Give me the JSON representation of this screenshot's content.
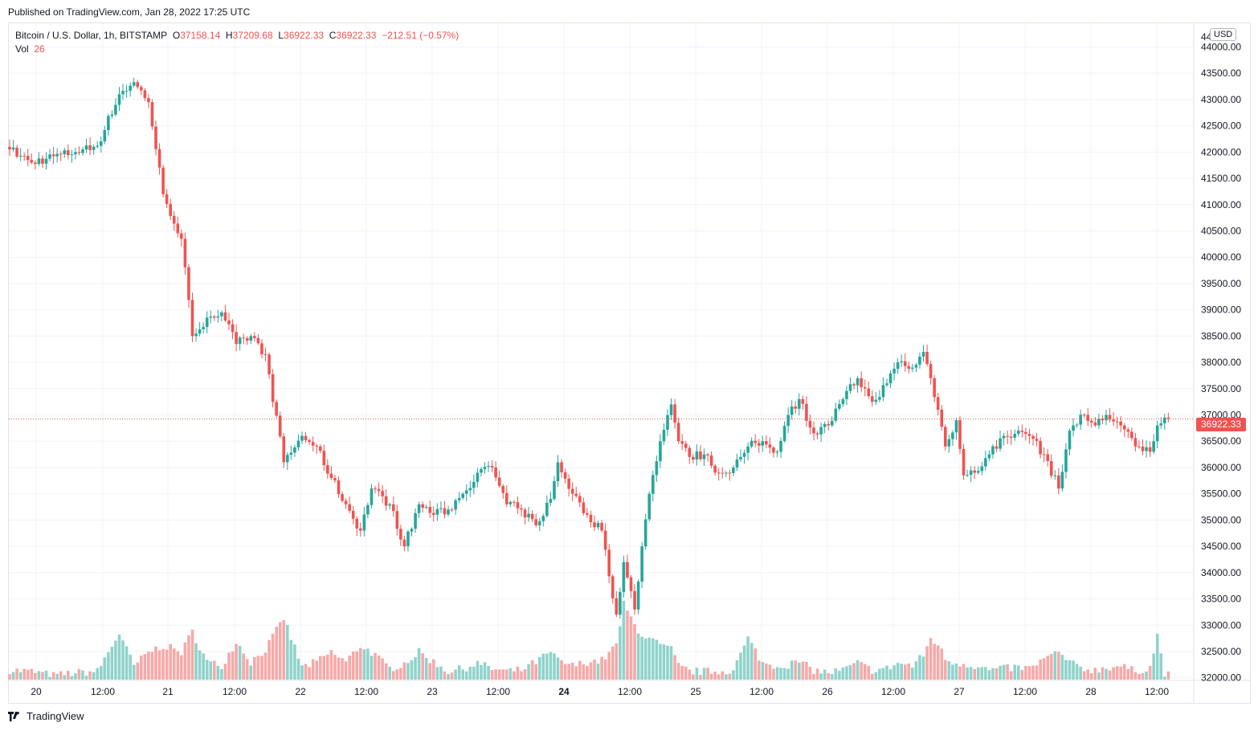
{
  "header": {
    "published": "Published on TradingView.com, Jan 28, 2022 17:25 UTC"
  },
  "legend": {
    "symbol": "Bitcoin / U.S. Dollar, 1h, BITSTAMP",
    "o_label": "O",
    "o_value": "37158.14",
    "h_label": "H",
    "h_value": "37209.68",
    "l_label": "L",
    "l_value": "36922.33",
    "c_label": "C",
    "c_value": "36922.33",
    "change": "−212.51 (−0.57%)",
    "vol_label": "Vol",
    "vol_value": "26"
  },
  "currency_badge": "USD",
  "last_price_label": "36922.33",
  "footer": {
    "brand": "TradingView"
  },
  "colors": {
    "up": "#26a69a",
    "down": "#ef5350",
    "up_vol": "#8fd3cb",
    "down_vol": "#f6a9a8",
    "grid": "#f0f3fa"
  },
  "chart_data": {
    "type": "candlestick",
    "symbol": "Bitcoin / U.S. Dollar, 1h, BITSTAMP",
    "interval": "1h",
    "last_price": 36922.33,
    "y_axis": {
      "ylim": [
        31950,
        44450
      ],
      "ticks": [
        32000,
        32500,
        33000,
        33500,
        34000,
        34500,
        35000,
        35500,
        36000,
        36500,
        37000,
        37500,
        38000,
        38500,
        39000,
        39500,
        40000,
        40500,
        41000,
        41500,
        42000,
        42500,
        43000,
        43500,
        44000
      ],
      "tick_labels": [
        "32000.00",
        "32500.00",
        "33000.00",
        "33500.00",
        "34000.00",
        "34500.00",
        "35000.00",
        "35500.00",
        "36000.00",
        "36500.00",
        "37000.00",
        "37500.00",
        "38000.00",
        "38500.00",
        "39000.00",
        "39500.00",
        "40000.00",
        "40500.00",
        "41000.00",
        "41500.00",
        "42000.00",
        "42500.00",
        "43000.00",
        "43500.00",
        "44000.00"
      ],
      "partial_top_label": "44"
    },
    "x_axis": {
      "ticks": [
        {
          "label": "20",
          "bold": false
        },
        {
          "label": "12:00",
          "bold": false
        },
        {
          "label": "21",
          "bold": false
        },
        {
          "label": "12:00",
          "bold": false
        },
        {
          "label": "22",
          "bold": false
        },
        {
          "label": "12:00",
          "bold": false
        },
        {
          "label": "23",
          "bold": false
        },
        {
          "label": "12:00",
          "bold": false
        },
        {
          "label": "24",
          "bold": true
        },
        {
          "label": "12:00",
          "bold": false
        },
        {
          "label": "25",
          "bold": false
        },
        {
          "label": "12:00",
          "bold": false
        },
        {
          "label": "26",
          "bold": false
        },
        {
          "label": "12:00",
          "bold": false
        },
        {
          "label": "27",
          "bold": false
        },
        {
          "label": "12:00",
          "bold": false
        },
        {
          "label": "28",
          "bold": false
        },
        {
          "label": "12:00",
          "bold": false
        }
      ]
    },
    "anchors": [
      [
        0,
        42050,
        0.07
      ],
      [
        6,
        41800,
        0.06
      ],
      [
        12,
        41920,
        0.03
      ],
      [
        18,
        42000,
        0.05
      ],
      [
        24,
        42120,
        0.06
      ],
      [
        30,
        43100,
        0.34
      ],
      [
        34,
        43330,
        0.1
      ],
      [
        38,
        42950,
        0.2
      ],
      [
        42,
        41200,
        0.25
      ],
      [
        47,
        40350,
        0.2
      ],
      [
        50,
        38500,
        0.35
      ],
      [
        54,
        38850,
        0.13
      ],
      [
        58,
        38950,
        0.1
      ],
      [
        62,
        38350,
        0.28
      ],
      [
        66,
        38500,
        0.13
      ],
      [
        70,
        38150,
        0.22
      ],
      [
        75,
        36100,
        0.45
      ],
      [
        80,
        36600,
        0.09
      ],
      [
        84,
        36400,
        0.13
      ],
      [
        88,
        35800,
        0.2
      ],
      [
        92,
        35300,
        0.13
      ],
      [
        96,
        34800,
        0.25
      ],
      [
        99,
        35600,
        0.2
      ],
      [
        104,
        35300,
        0.08
      ],
      [
        108,
        34500,
        0.12
      ],
      [
        112,
        35300,
        0.2
      ],
      [
        116,
        35100,
        0.13
      ],
      [
        120,
        35200,
        0.06
      ],
      [
        124,
        35500,
        0.08
      ],
      [
        128,
        35900,
        0.12
      ],
      [
        132,
        36000,
        0.08
      ],
      [
        136,
        35300,
        0.06
      ],
      [
        140,
        35200,
        0.07
      ],
      [
        144,
        34900,
        0.13
      ],
      [
        148,
        35400,
        0.2
      ],
      [
        150,
        36100,
        0.14
      ],
      [
        154,
        35500,
        0.1
      ],
      [
        158,
        35100,
        0.13
      ],
      [
        162,
        34800,
        0.14
      ],
      [
        166,
        33200,
        0.25
      ],
      [
        168,
        34200,
        0.55
      ],
      [
        171,
        33300,
        0.4
      ],
      [
        173,
        34500,
        0.33
      ],
      [
        175,
        35500,
        0.3
      ],
      [
        178,
        36500,
        0.25
      ],
      [
        181,
        37200,
        0.22
      ],
      [
        183,
        36500,
        0.1
      ],
      [
        186,
        36200,
        0.06
      ],
      [
        190,
        36250,
        0.06
      ],
      [
        194,
        35900,
        0.06
      ],
      [
        198,
        36000,
        0.07
      ],
      [
        202,
        36400,
        0.3
      ],
      [
        206,
        36500,
        0.12
      ],
      [
        210,
        36300,
        0.1
      ],
      [
        213,
        37000,
        0.11
      ],
      [
        216,
        37300,
        0.13
      ],
      [
        220,
        36650,
        0.07
      ],
      [
        224,
        36800,
        0.05
      ],
      [
        228,
        37300,
        0.07
      ],
      [
        232,
        37700,
        0.12
      ],
      [
        236,
        37250,
        0.07
      ],
      [
        240,
        37600,
        0.08
      ],
      [
        243,
        38000,
        0.12
      ],
      [
        247,
        37900,
        0.1
      ],
      [
        250,
        38200,
        0.18
      ],
      [
        252,
        37700,
        0.3
      ],
      [
        254,
        37100,
        0.26
      ],
      [
        256,
        36400,
        0.15
      ],
      [
        259,
        36900,
        0.12
      ],
      [
        261,
        35850,
        0.12
      ],
      [
        264,
        35900,
        0.1
      ],
      [
        268,
        36250,
        0.07
      ],
      [
        272,
        36600,
        0.08
      ],
      [
        276,
        36700,
        0.09
      ],
      [
        279,
        36600,
        0.08
      ],
      [
        283,
        36250,
        0.15
      ],
      [
        287,
        35600,
        0.2
      ],
      [
        290,
        36700,
        0.12
      ],
      [
        294,
        37000,
        0.08
      ],
      [
        297,
        36800,
        0.07
      ],
      [
        300,
        37000,
        0.09
      ],
      [
        304,
        36800,
        0.1
      ],
      [
        308,
        36400,
        0.06
      ],
      [
        312,
        36300,
        0.09
      ],
      [
        314,
        36800,
        0.32
      ],
      [
        316,
        36950,
        0.05
      ],
      [
        317,
        36922.33,
        0.04
      ]
    ],
    "note_volume": "relative volume per bar, 0-1 of volume pane height"
  }
}
